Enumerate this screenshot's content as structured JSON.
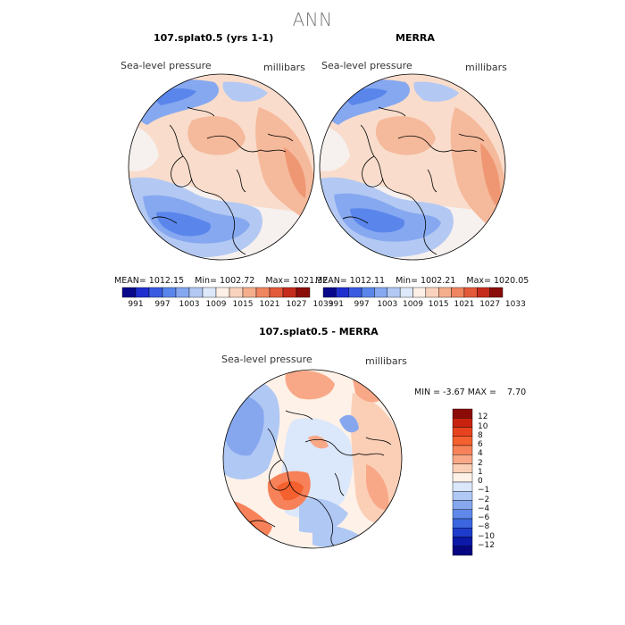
{
  "page": {
    "main_title": "ANN"
  },
  "panels": [
    {
      "title": "107.splat0.5 (yrs 1-1)",
      "variable": "Sea-level pressure",
      "units": "millibars",
      "stats": {
        "mean": "1012.15",
        "min": "1002.72",
        "max": "1021.32"
      }
    },
    {
      "title": "MERRA",
      "variable": "Sea-level pressure",
      "units": "millibars",
      "stats": {
        "mean": "1012.11",
        "min": "1002.21",
        "max": "1020.05"
      }
    },
    {
      "title": "107.splat0.5 - MERRA",
      "variable": "Sea-level pressure",
      "units": "millibars",
      "stats": {
        "min": "-3.67",
        "max": "7.70"
      }
    }
  ],
  "labels": {
    "mean_prefix": "MEAN=",
    "min_prefix": "Min=",
    "max_prefix": "Max=",
    "diff_min_prefix": "MIN =",
    "diff_max_prefix": "MAX ="
  },
  "colorbars": {
    "field": {
      "ticks": [
        "991",
        "997",
        "1003",
        "1009",
        "1015",
        "1021",
        "1027",
        "1033"
      ],
      "colors": [
        "#08088a",
        "#1f2fcf",
        "#3b5be3",
        "#5a86ec",
        "#86a8f0",
        "#b3c9f3",
        "#dde8fa",
        "#fdf0e6",
        "#f9d2bd",
        "#f5ae8c",
        "#ef8561",
        "#e35a3b",
        "#c52c1c",
        "#8a0d0a"
      ]
    },
    "diff": {
      "ticks": [
        "12",
        "10",
        "8",
        "6",
        "4",
        "2",
        "1",
        "0",
        "−1",
        "−2",
        "−4",
        "−6",
        "−8",
        "−10",
        "−12"
      ],
      "colors": [
        "#8c0b07",
        "#c9230f",
        "#e8431f",
        "#f4602e",
        "#f7825a",
        "#f9a887",
        "#fbcfb6",
        "#fdf1e8",
        "#dbe7fa",
        "#b0c8f4",
        "#86a7ee",
        "#5f88ea",
        "#3b66e0",
        "#1d3ccc",
        "#0b18a8",
        "#060682"
      ]
    }
  },
  "map_colors": {
    "ocean_base": "#f9dccb",
    "low_deep": "#3d6be0",
    "low_mid": "#6c95ec",
    "low_light": "#9cbaf2",
    "low_pale": "#c8d8f7",
    "neutral": "#f6f0ee",
    "high_pale": "#f9d8c4",
    "high_light": "#f5b99b",
    "high_mid": "#ef9673",
    "high_deep": "#e35a3b"
  }
}
